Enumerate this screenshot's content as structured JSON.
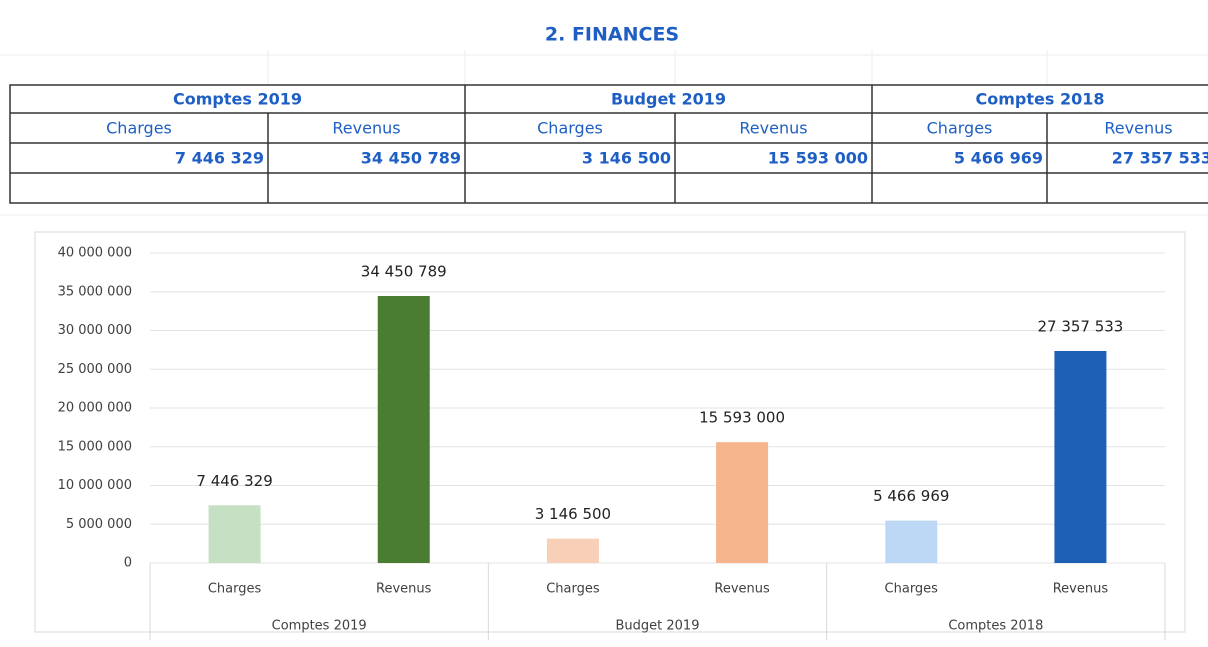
{
  "header": {
    "title": "2. FINANCES"
  },
  "table": {
    "groups": [
      "Comptes 2019",
      "Budget 2019",
      "Comptes 2018"
    ],
    "subheaders": [
      "Charges",
      "Revenus",
      "Charges",
      "Revenus",
      "Charges",
      "Revenus"
    ],
    "values": [
      "7 446 329",
      "34 450 789",
      "3 146 500",
      "15 593 000",
      "5 466 969",
      "27 357 533"
    ]
  },
  "chart_data": {
    "type": "bar",
    "categories": [
      "Charges",
      "Revenus",
      "Charges",
      "Revenus",
      "Charges",
      "Revenus"
    ],
    "groups": [
      "Comptes 2019",
      "Budget 2019",
      "Comptes 2018"
    ],
    "values": [
      7446329,
      34450789,
      3146500,
      15593000,
      5466969,
      27357533
    ],
    "value_labels": [
      "7 446 329",
      "34 450 789",
      "3 146 500",
      "15 593 000",
      "5 466 969",
      "27 357 533"
    ],
    "colors": [
      "#c6e0c4",
      "#4a7d32",
      "#f8d0b8",
      "#f6b48c",
      "#bdd8f5",
      "#1c5fb5"
    ],
    "ylim": [
      0,
      40000000
    ],
    "yticks": [
      0,
      {
        "value": 5000000,
        "label": "5 000 000"
      },
      {
        "value": 10000000,
        "label": "10 000 000"
      },
      {
        "value": 15000000,
        "label": "15 000 000"
      },
      {
        "value": 20000000,
        "label": "20 000 000"
      },
      {
        "value": 25000000,
        "label": "25 000 000"
      },
      {
        "value": 30000000,
        "label": "30 000 000"
      },
      {
        "value": 35000000,
        "label": "35 000 000"
      },
      {
        "value": 40000000,
        "label": "40 000 000"
      }
    ],
    "grid": true
  }
}
